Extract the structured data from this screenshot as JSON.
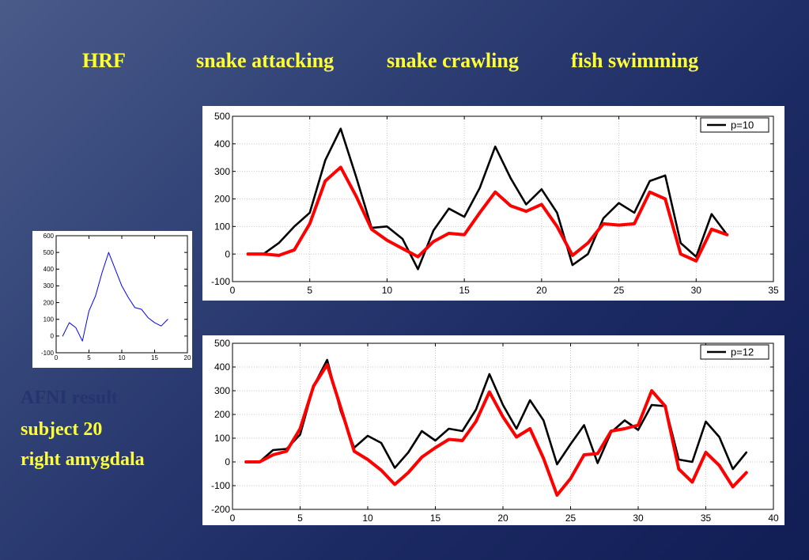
{
  "header": {
    "labels": [
      "HRF",
      "snake attacking",
      "snake crawling",
      "fish swimming"
    ]
  },
  "caption": {
    "line0": "AFNI result",
    "line1": "subject 20",
    "line2": "right amygdala"
  },
  "colors": {
    "text_yellow": "#ffff33",
    "series_black": "#000000",
    "series_red": "#ff0000",
    "hrf_blue": "#0000ff"
  },
  "chart_data": [
    {
      "type": "line",
      "id": "hrf",
      "x": [
        1,
        2,
        3,
        4,
        5,
        6,
        7,
        8,
        9,
        10,
        11,
        12,
        13,
        14,
        15,
        16,
        17
      ],
      "series": [
        {
          "color": "#0000ff",
          "values": [
            0,
            80,
            50,
            -30,
            150,
            240,
            380,
            500,
            400,
            300,
            230,
            170,
            160,
            110,
            80,
            60,
            100
          ]
        }
      ],
      "xlim": [
        0,
        20
      ],
      "ylim": [
        -100,
        600
      ],
      "xticks": [
        0,
        5,
        10,
        15,
        20
      ],
      "yticks": [
        -100,
        0,
        100,
        200,
        300,
        400,
        500,
        600
      ],
      "grid": false
    },
    {
      "type": "line",
      "id": "p10",
      "legend": "p=10",
      "legend_position": "top-right",
      "x": [
        1,
        2,
        3,
        4,
        5,
        6,
        7,
        8,
        9,
        10,
        11,
        12,
        13,
        14,
        15,
        16,
        17,
        18,
        19,
        20,
        21,
        22,
        23,
        24,
        25,
        26,
        27,
        28,
        29,
        30,
        31,
        32
      ],
      "series": [
        {
          "name": "p=10",
          "color": "#000000",
          "values": [
            0,
            0,
            40,
            100,
            150,
            340,
            455,
            280,
            95,
            100,
            55,
            -55,
            85,
            165,
            135,
            240,
            390,
            275,
            180,
            235,
            150,
            -40,
            0,
            130,
            185,
            150,
            265,
            285,
            40,
            -10,
            145,
            70
          ]
        },
        {
          "color": "#ff0000",
          "values": [
            0,
            0,
            -5,
            15,
            110,
            265,
            315,
            210,
            90,
            50,
            20,
            -10,
            45,
            75,
            70,
            150,
            225,
            175,
            155,
            180,
            100,
            -5,
            40,
            110,
            105,
            110,
            225,
            200,
            0,
            -25,
            90,
            70
          ]
        }
      ],
      "xlim": [
        0,
        35
      ],
      "ylim": [
        -100,
        500
      ],
      "xticks": [
        0,
        5,
        10,
        15,
        20,
        25,
        30,
        35
      ],
      "yticks": [
        -100,
        0,
        100,
        200,
        300,
        400,
        500
      ],
      "grid": true
    },
    {
      "type": "line",
      "id": "p12",
      "legend": "p=12",
      "legend_position": "top-right",
      "x": [
        1,
        2,
        3,
        4,
        5,
        6,
        7,
        8,
        9,
        10,
        11,
        12,
        13,
        14,
        15,
        16,
        17,
        18,
        19,
        20,
        21,
        22,
        23,
        24,
        25,
        26,
        27,
        28,
        29,
        30,
        31,
        32,
        33,
        34,
        35,
        36,
        37,
        38
      ],
      "series": [
        {
          "name": "p=12",
          "color": "#000000",
          "values": [
            0,
            0,
            50,
            55,
            115,
            320,
            430,
            215,
            60,
            110,
            80,
            -25,
            40,
            130,
            90,
            140,
            130,
            220,
            370,
            240,
            140,
            260,
            175,
            -10,
            75,
            155,
            -5,
            125,
            175,
            135,
            240,
            235,
            10,
            0,
            170,
            105,
            -30,
            40
          ]
        },
        {
          "color": "#ff0000",
          "values": [
            0,
            0,
            30,
            45,
            140,
            320,
            410,
            230,
            45,
            10,
            -35,
            -95,
            -45,
            20,
            60,
            95,
            90,
            170,
            295,
            190,
            105,
            140,
            15,
            -140,
            -70,
            30,
            35,
            130,
            140,
            155,
            300,
            235,
            -30,
            -85,
            40,
            -15,
            -105,
            -45
          ]
        }
      ],
      "xlim": [
        0,
        40
      ],
      "ylim": [
        -200,
        500
      ],
      "xticks": [
        0,
        5,
        10,
        15,
        20,
        25,
        30,
        35,
        40
      ],
      "yticks": [
        -200,
        -100,
        0,
        100,
        200,
        300,
        400,
        500
      ],
      "grid": true
    }
  ]
}
